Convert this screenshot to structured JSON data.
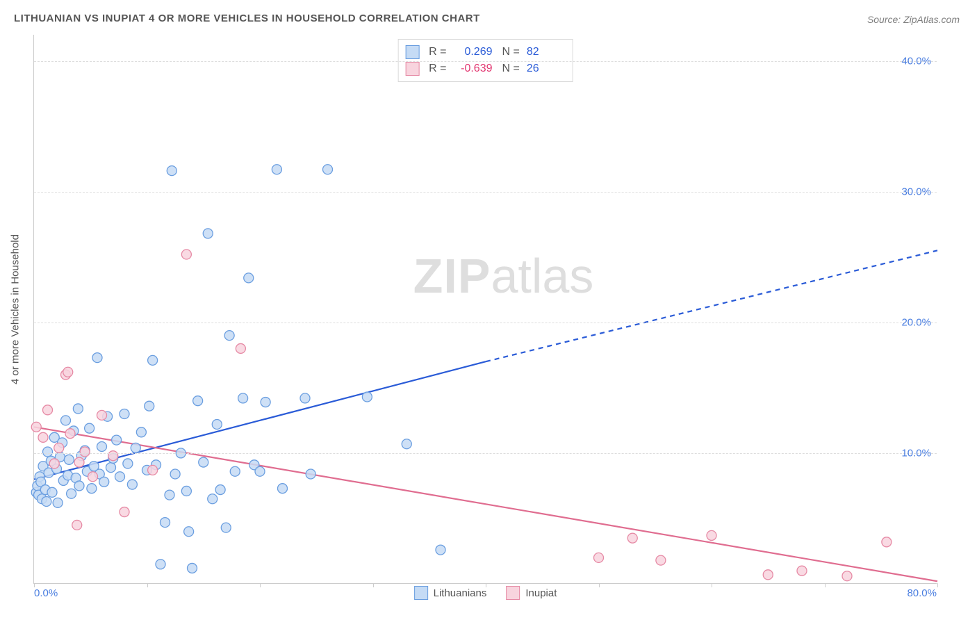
{
  "title": "LITHUANIAN VS INUPIAT 4 OR MORE VEHICLES IN HOUSEHOLD CORRELATION CHART",
  "source_label": "Source: ",
  "source_value": "ZipAtlas.com",
  "y_axis_title": "4 or more Vehicles in Household",
  "watermark_bold": "ZIP",
  "watermark_light": "atlas",
  "chart": {
    "type": "scatter-with-regression",
    "xlim": [
      0,
      80
    ],
    "ylim": [
      0,
      42
    ],
    "x_ticks_pct": [
      0,
      10,
      20,
      30,
      40,
      50,
      60,
      70,
      80
    ],
    "x_origin_label": "0.0%",
    "x_max_label": "80.0%",
    "y_ticks": [
      {
        "val": 10,
        "label": "10.0%"
      },
      {
        "val": 20,
        "label": "20.0%"
      },
      {
        "val": 30,
        "label": "30.0%"
      },
      {
        "val": 40,
        "label": "40.0%"
      }
    ],
    "tick_color": "#4a7ee0",
    "series": [
      {
        "key": "lith",
        "name": "Lithuanians",
        "fill": "#c5dbf5",
        "stroke": "#6a9ee0",
        "line_color": "#2a5bd7",
        "line_width": 2.2,
        "marker_r": 7,
        "R": "0.269",
        "N": "82",
        "reg_start": {
          "x": 0,
          "y": 8.0
        },
        "reg_end_solid": {
          "x": 40,
          "y": 17.0
        },
        "reg_end_dashed": {
          "x": 80,
          "y": 25.5
        },
        "points": [
          [
            0.2,
            7.0
          ],
          [
            0.3,
            7.5
          ],
          [
            0.4,
            6.8
          ],
          [
            0.5,
            8.2
          ],
          [
            0.6,
            7.8
          ],
          [
            0.7,
            6.5
          ],
          [
            0.8,
            9.0
          ],
          [
            1.0,
            7.2
          ],
          [
            1.1,
            6.3
          ],
          [
            1.2,
            10.1
          ],
          [
            1.3,
            8.5
          ],
          [
            1.5,
            9.4
          ],
          [
            1.6,
            7.0
          ],
          [
            1.8,
            11.2
          ],
          [
            2.0,
            8.8
          ],
          [
            2.1,
            6.2
          ],
          [
            2.3,
            9.7
          ],
          [
            2.5,
            10.8
          ],
          [
            2.6,
            7.9
          ],
          [
            2.8,
            12.5
          ],
          [
            3.0,
            8.3
          ],
          [
            3.1,
            9.5
          ],
          [
            3.3,
            6.9
          ],
          [
            3.5,
            11.7
          ],
          [
            3.7,
            8.1
          ],
          [
            3.9,
            13.4
          ],
          [
            4.0,
            7.5
          ],
          [
            4.2,
            9.8
          ],
          [
            4.5,
            10.2
          ],
          [
            4.7,
            8.6
          ],
          [
            4.9,
            11.9
          ],
          [
            5.1,
            7.3
          ],
          [
            5.3,
            9.0
          ],
          [
            5.6,
            17.3
          ],
          [
            5.8,
            8.4
          ],
          [
            6.0,
            10.5
          ],
          [
            6.2,
            7.8
          ],
          [
            6.5,
            12.8
          ],
          [
            6.8,
            8.9
          ],
          [
            7.0,
            9.6
          ],
          [
            7.3,
            11.0
          ],
          [
            7.6,
            8.2
          ],
          [
            8.0,
            13.0
          ],
          [
            8.3,
            9.2
          ],
          [
            8.7,
            7.6
          ],
          [
            9.0,
            10.4
          ],
          [
            9.5,
            11.6
          ],
          [
            10.0,
            8.7
          ],
          [
            10.2,
            13.6
          ],
          [
            10.5,
            17.1
          ],
          [
            10.8,
            9.1
          ],
          [
            11.2,
            1.5
          ],
          [
            11.6,
            4.7
          ],
          [
            12.0,
            6.8
          ],
          [
            12.2,
            31.6
          ],
          [
            12.5,
            8.4
          ],
          [
            13.0,
            10.0
          ],
          [
            13.5,
            7.1
          ],
          [
            13.7,
            4.0
          ],
          [
            14.0,
            1.2
          ],
          [
            14.5,
            14.0
          ],
          [
            15.0,
            9.3
          ],
          [
            15.4,
            26.8
          ],
          [
            15.8,
            6.5
          ],
          [
            16.2,
            12.2
          ],
          [
            16.5,
            7.2
          ],
          [
            17.0,
            4.3
          ],
          [
            17.3,
            19.0
          ],
          [
            17.8,
            8.6
          ],
          [
            18.5,
            14.2
          ],
          [
            19.0,
            23.4
          ],
          [
            19.5,
            9.1
          ],
          [
            20.0,
            8.6
          ],
          [
            20.5,
            13.9
          ],
          [
            21.5,
            31.7
          ],
          [
            22.0,
            7.3
          ],
          [
            24.0,
            14.2
          ],
          [
            24.5,
            8.4
          ],
          [
            26.0,
            31.7
          ],
          [
            29.5,
            14.3
          ],
          [
            33.0,
            10.7
          ],
          [
            36.0,
            2.6
          ]
        ]
      },
      {
        "key": "inu",
        "name": "Inupiat",
        "fill": "#f8d4de",
        "stroke": "#e68aa5",
        "line_color": "#e06d90",
        "line_width": 2.2,
        "marker_r": 7,
        "R": "-0.639",
        "N": "26",
        "reg_start": {
          "x": 0,
          "y": 12.0
        },
        "reg_end_solid": {
          "x": 80,
          "y": 0.2
        },
        "reg_end_dashed": null,
        "points": [
          [
            0.2,
            12.0
          ],
          [
            0.8,
            11.2
          ],
          [
            1.2,
            13.3
          ],
          [
            1.8,
            9.2
          ],
          [
            2.2,
            10.4
          ],
          [
            2.8,
            16.0
          ],
          [
            3.0,
            16.2
          ],
          [
            3.2,
            11.5
          ],
          [
            3.8,
            4.5
          ],
          [
            4.0,
            9.3
          ],
          [
            4.5,
            10.1
          ],
          [
            5.2,
            8.2
          ],
          [
            6.0,
            12.9
          ],
          [
            7.0,
            9.8
          ],
          [
            8.0,
            5.5
          ],
          [
            10.5,
            8.7
          ],
          [
            13.5,
            25.2
          ],
          [
            18.3,
            18.0
          ],
          [
            50.0,
            2.0
          ],
          [
            53.0,
            3.5
          ],
          [
            55.5,
            1.8
          ],
          [
            60.0,
            3.7
          ],
          [
            65.0,
            0.7
          ],
          [
            68.0,
            1.0
          ],
          [
            72.0,
            0.6
          ],
          [
            75.5,
            3.2
          ]
        ]
      }
    ]
  },
  "legend_top_rows": [
    {
      "series_key": "lith",
      "r_label": "R =",
      "n_label": "N =",
      "r_color": "#2a5bd7",
      "n_color": "#2a5bd7"
    },
    {
      "series_key": "inu",
      "r_label": "R =",
      "n_label": "N =",
      "r_color": "#e23670",
      "n_color": "#2a5bd7"
    }
  ],
  "legend_bottom": [
    {
      "series_key": "lith"
    },
    {
      "series_key": "inu"
    }
  ]
}
